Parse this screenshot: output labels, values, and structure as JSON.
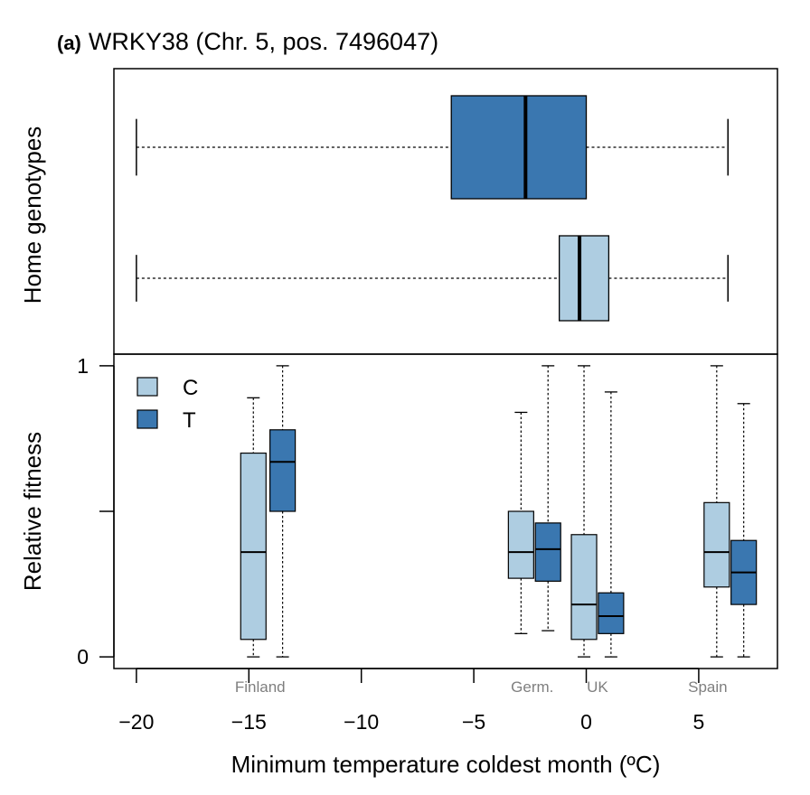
{
  "chart_data": {
    "type": "boxplot",
    "title": {
      "panel_tag": "(a)",
      "text": "WRKY38 (Chr. 5, pos. 7496047)"
    },
    "xlabel": "Minimum temperature coldest month (ºC)",
    "x_ticks": [
      "−20",
      "−15",
      "−10",
      "−5",
      "0",
      "5"
    ],
    "x_tick_values": [
      -20,
      -15,
      -10,
      -5,
      0,
      5
    ],
    "xlim": [
      -21,
      8.5
    ],
    "site_labels": [
      {
        "label": "Finland",
        "x": -14.5
      },
      {
        "label": "Germ.",
        "x": -2.4
      },
      {
        "label": "UK",
        "x": 0.5
      },
      {
        "label": "Spain",
        "x": 5.4
      }
    ],
    "colors": {
      "C": "#aecde1",
      "T": "#3a77b0"
    },
    "top_panel": {
      "ylabel": "Home genotypes",
      "boxes": [
        {
          "genotype": "T",
          "min": -20,
          "q1": -6.0,
          "median": -2.7,
          "q3": 0.0,
          "max": 6.3
        },
        {
          "genotype": "C",
          "min": -20,
          "q1": -1.2,
          "median": -0.3,
          "q3": 1.0,
          "max": 6.3
        }
      ]
    },
    "bottom_panel": {
      "ylabel": "Relative fitness",
      "y_ticks": [
        "0",
        "1"
      ],
      "y_tick_values": [
        0,
        1
      ],
      "ylim": [
        -0.04,
        1.04
      ],
      "legend": {
        "position": "top-left",
        "entries": [
          "C",
          "T"
        ]
      },
      "boxes": [
        {
          "site": "Finland",
          "genotype": "C",
          "x": -14.8,
          "min": 0.0,
          "q1": 0.06,
          "median": 0.36,
          "q3": 0.7,
          "max": 0.89
        },
        {
          "site": "Finland",
          "genotype": "T",
          "x": -13.5,
          "min": 0.0,
          "q1": 0.5,
          "median": 0.67,
          "q3": 0.78,
          "max": 1.0
        },
        {
          "site": "Germ.",
          "genotype": "C",
          "x": -2.9,
          "min": 0.08,
          "q1": 0.27,
          "median": 0.36,
          "q3": 0.5,
          "max": 0.84
        },
        {
          "site": "Germ.",
          "genotype": "T",
          "x": -1.7,
          "min": 0.09,
          "q1": 0.26,
          "median": 0.37,
          "q3": 0.46,
          "max": 1.0
        },
        {
          "site": "UK",
          "genotype": "C",
          "x": -0.1,
          "min": 0.0,
          "q1": 0.06,
          "median": 0.18,
          "q3": 0.42,
          "max": 1.0
        },
        {
          "site": "UK",
          "genotype": "T",
          "x": 1.1,
          "min": 0.0,
          "q1": 0.08,
          "median": 0.14,
          "q3": 0.22,
          "max": 0.91
        },
        {
          "site": "Spain",
          "genotype": "C",
          "x": 5.8,
          "min": 0.0,
          "q1": 0.24,
          "median": 0.36,
          "q3": 0.53,
          "max": 1.0
        },
        {
          "site": "Spain",
          "genotype": "T",
          "x": 7.0,
          "min": 0.0,
          "q1": 0.18,
          "median": 0.29,
          "q3": 0.4,
          "max": 0.87
        }
      ]
    }
  }
}
